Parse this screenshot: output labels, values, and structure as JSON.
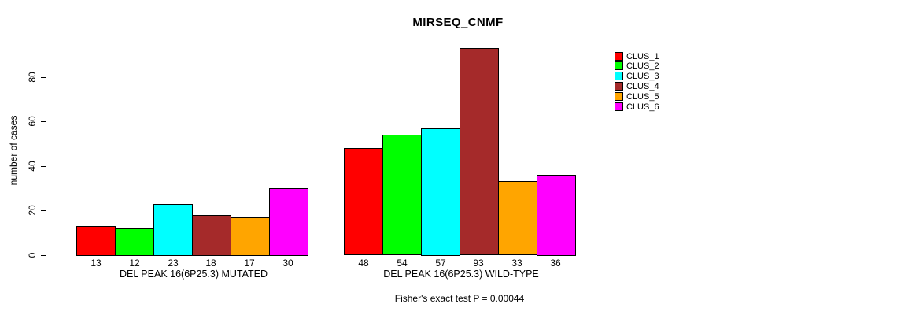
{
  "chart_data": {
    "type": "bar",
    "title": "MIRSEQ_CNMF",
    "ylabel": "number of cases",
    "xlabel": "",
    "ylim": [
      0,
      95
    ],
    "yticks": [
      0,
      20,
      40,
      60,
      80
    ],
    "grid": false,
    "legend_position": "top-right",
    "legend": [
      {
        "label": "CLUS_1",
        "color": "#FF0000"
      },
      {
        "label": "CLUS_2",
        "color": "#00FF00"
      },
      {
        "label": "CLUS_3",
        "color": "#00FFFF"
      },
      {
        "label": "CLUS_4",
        "color": "#A52A2A"
      },
      {
        "label": "CLUS_5",
        "color": "#FFA500"
      },
      {
        "label": "CLUS_6",
        "color": "#FF00FF"
      }
    ],
    "series_colors": [
      "#FF0000",
      "#00FF00",
      "#00FFFF",
      "#A52A2A",
      "#FFA500",
      "#FF00FF"
    ],
    "groups": [
      {
        "label": "DEL PEAK 16(6P25.3) MUTATED",
        "values": [
          13,
          12,
          23,
          18,
          17,
          30
        ]
      },
      {
        "label": "DEL PEAK 16(6P25.3) WILD-TYPE",
        "values": [
          48,
          54,
          57,
          93,
          33,
          36
        ]
      }
    ],
    "value_labels_shown": true,
    "annotation": "Fisher's exact test P = 0.00044",
    "axis_color": "#000000",
    "background_color": "#ffffff"
  }
}
